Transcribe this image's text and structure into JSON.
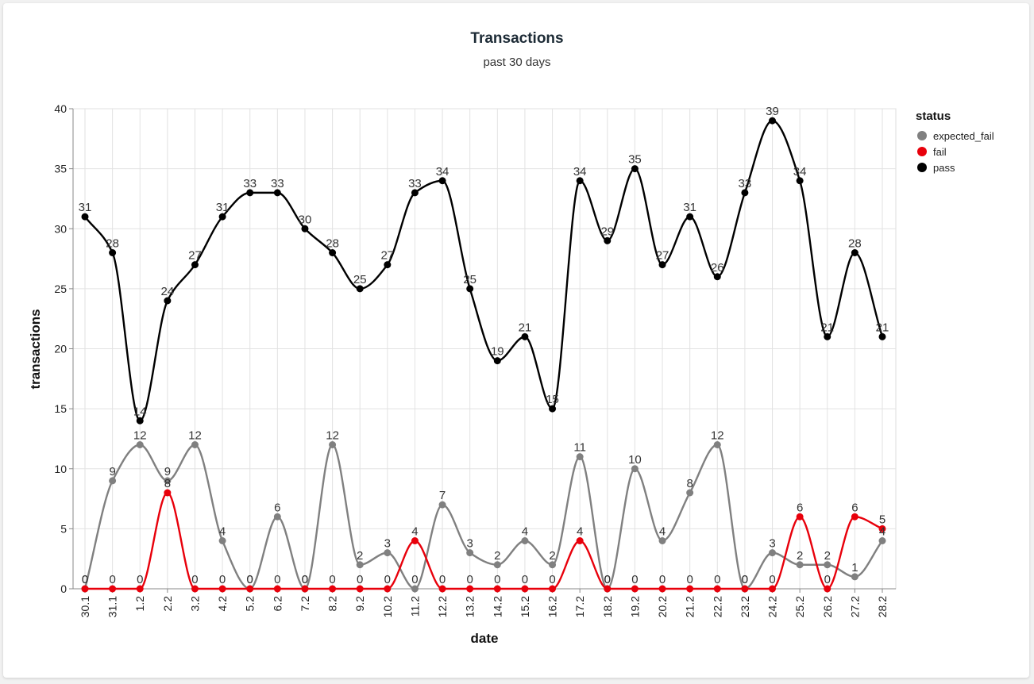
{
  "chart_data": {
    "type": "line",
    "title": "Transactions",
    "subtitle": "past 30 days",
    "xlabel": "date",
    "ylabel": "transactions",
    "ylim": [
      0,
      40
    ],
    "yticks": [
      0,
      5,
      10,
      15,
      20,
      25,
      30,
      35,
      40
    ],
    "grid": true,
    "legend_title": "status",
    "legend_position": "right",
    "categories": [
      "30.1",
      "31.1",
      "1.2",
      "2.2",
      "3.2",
      "4.2",
      "5.2",
      "6.2",
      "7.2",
      "8.2",
      "9.2",
      "10.2",
      "11.2",
      "12.2",
      "13.2",
      "14.2",
      "15.2",
      "16.2",
      "17.2",
      "18.2",
      "19.2",
      "20.2",
      "21.2",
      "22.2",
      "23.2",
      "24.2",
      "25.2",
      "26.2",
      "27.2",
      "28.2"
    ],
    "series": [
      {
        "name": "expected_fail",
        "color": "#808080",
        "values": [
          0,
          9,
          12,
          9,
          12,
          4,
          0,
          6,
          0,
          12,
          2,
          3,
          0,
          7,
          3,
          2,
          4,
          2,
          11,
          0,
          10,
          4,
          8,
          12,
          0,
          3,
          2,
          2,
          1,
          4
        ]
      },
      {
        "name": "fail",
        "color": "#e8000b",
        "values": [
          0,
          0,
          0,
          8,
          0,
          0,
          0,
          0,
          0,
          0,
          0,
          0,
          4,
          0,
          0,
          0,
          0,
          0,
          4,
          0,
          0,
          0,
          0,
          0,
          0,
          0,
          6,
          0,
          6,
          5
        ]
      },
      {
        "name": "pass",
        "color": "#000000",
        "values": [
          31,
          28,
          14,
          24,
          27,
          31,
          33,
          33,
          30,
          28,
          25,
          27,
          33,
          34,
          25,
          19,
          21,
          15,
          34,
          29,
          35,
          27,
          31,
          26,
          33,
          39,
          34,
          21,
          28,
          21
        ]
      }
    ]
  }
}
